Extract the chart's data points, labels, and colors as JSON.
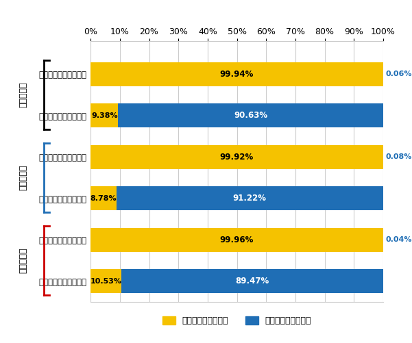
{
  "categories": [
    "覚醚剤の生涯経験なし",
    "覚醚剤の生涯経験あり",
    "覚醚剤の生涯経験なし",
    "覚醚剤の生涯経験あり",
    "覚醚剤の生涯経験なし",
    "覚醚剤の生涯経験あり"
  ],
  "yellow_vals": [
    99.94,
    9.38,
    99.92,
    8.78,
    99.96,
    10.53
  ],
  "blue_vals": [
    0.06,
    90.63,
    0.08,
    91.22,
    0.04,
    89.47
  ],
  "yellow_labels": [
    "99.94%",
    "9.38%",
    "99.92%",
    "8.78%",
    "99.96%",
    "10.53%"
  ],
  "blue_labels": [
    "0.06%",
    "90.63%",
    "0.08%",
    "91.22%",
    "0.04%",
    "89.47%"
  ],
  "group_labels": [
    "中学生全体",
    "男子中学生",
    "女子中学生"
  ],
  "group_bracket_colors": [
    "#000000",
    "#1f6eb5",
    "#cc0000"
  ],
  "yellow_color": "#f5c200",
  "blue_color": "#1f6eb5",
  "legend_yellow": "大麻の生涯経験なし",
  "legend_blue": "大麻の生涯経験あり",
  "background_color": "#ffffff",
  "grid_color": "#cccccc"
}
